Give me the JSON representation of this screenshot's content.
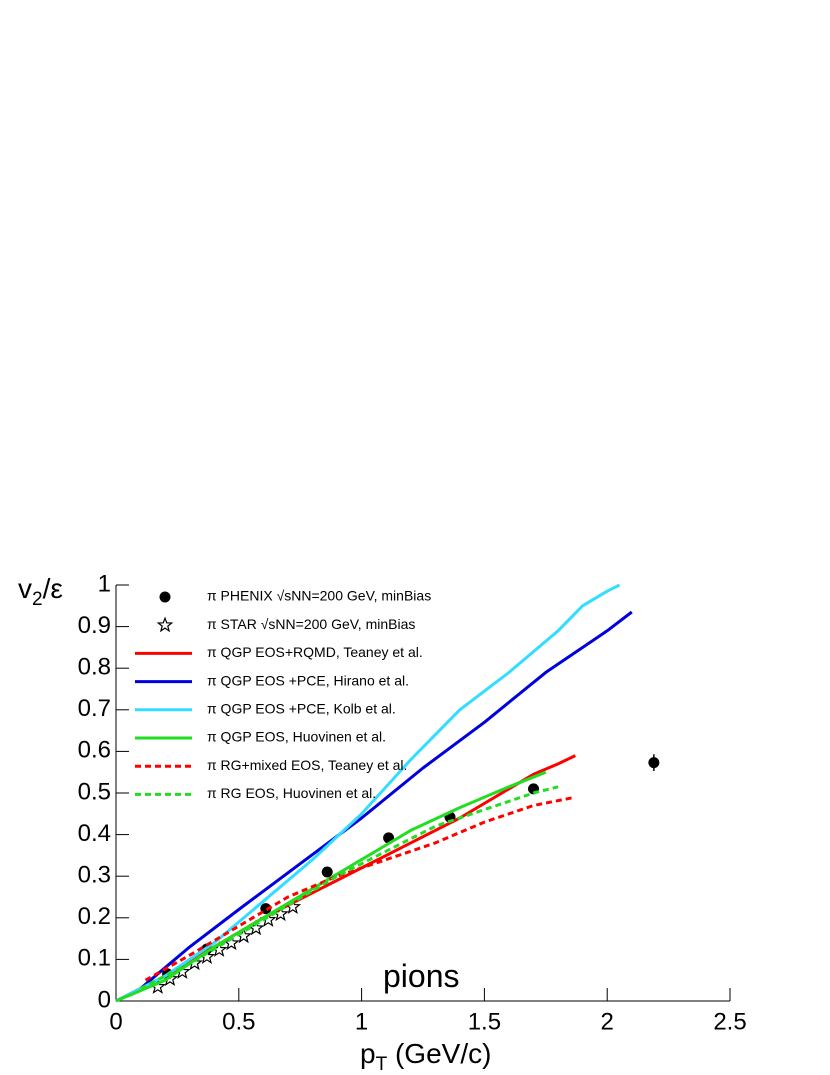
{
  "chart_data": {
    "type": "line",
    "xlabel": [
      "p",
      "T",
      " (GeV/c)"
    ],
    "ylabel": [
      "v",
      "2",
      "/ε"
    ],
    "annotation": "pions",
    "xlim": [
      0,
      2.5
    ],
    "ylim": [
      0,
      1
    ],
    "xticks": [
      0,
      0.5,
      1,
      1.5,
      2,
      2.5
    ],
    "yticks": [
      0,
      0.1,
      0.2,
      0.3,
      0.4,
      0.5,
      0.6,
      0.7,
      0.8,
      0.9,
      1
    ],
    "series": [
      {
        "name": "π PHENIX √sNN=200 GeV, minBias",
        "style": "points",
        "color": "#000000",
        "x": [
          0.21,
          0.37,
          0.61,
          0.86,
          1.11,
          1.36,
          1.7,
          2.19
        ],
        "values": [
          0.065,
          0.125,
          0.222,
          0.31,
          0.392,
          0.442,
          0.51,
          0.573
        ],
        "errors": [
          0.005,
          0.005,
          0.005,
          0.005,
          0.006,
          0.007,
          0.008,
          0.02
        ]
      },
      {
        "name": "π STAR √sNN=200 GeV, minBias",
        "style": "stars",
        "color": "#000000",
        "x": [
          0.17,
          0.22,
          0.27,
          0.32,
          0.37,
          0.42,
          0.47,
          0.52,
          0.57,
          0.62,
          0.67,
          0.72
        ],
        "values": [
          0.034,
          0.053,
          0.07,
          0.091,
          0.106,
          0.123,
          0.139,
          0.156,
          0.175,
          0.195,
          0.209,
          0.226
        ]
      },
      {
        "name": "π  QGP EOS+RQMD, Teaney et al.",
        "style": "solid",
        "color": "#ff0000",
        "x": [
          0.2,
          0.4,
          0.6,
          0.8,
          1.0,
          1.2,
          1.4,
          1.6,
          1.7,
          1.8,
          1.87
        ],
        "values": [
          0.06,
          0.13,
          0.2,
          0.26,
          0.32,
          0.38,
          0.44,
          0.51,
          0.545,
          0.57,
          0.59
        ]
      },
      {
        "name": "π QGP EOS +PCE, Hirano et al.",
        "style": "solid",
        "color": "#0000dd",
        "x": [
          0,
          0.1,
          0.2,
          0.3,
          0.5,
          0.75,
          1.0,
          1.25,
          1.5,
          1.75,
          2.0,
          2.1
        ],
        "values": [
          0,
          0.03,
          0.08,
          0.13,
          0.22,
          0.33,
          0.44,
          0.56,
          0.67,
          0.79,
          0.89,
          0.935
        ]
      },
      {
        "name": "π QGP EOS +PCE, Kolb et al.",
        "style": "solid",
        "color": "#33ddff",
        "x": [
          0,
          0.2,
          0.4,
          0.6,
          0.8,
          1.0,
          1.2,
          1.4,
          1.6,
          1.8,
          1.9,
          2.0,
          2.05
        ],
        "values": [
          0,
          0.06,
          0.14,
          0.24,
          0.34,
          0.45,
          0.58,
          0.7,
          0.79,
          0.89,
          0.95,
          0.985,
          1.0
        ]
      },
      {
        "name": "π QGP EOS, Huovinen et al.",
        "style": "solid",
        "color": "#22dd22",
        "x": [
          0,
          0.2,
          0.4,
          0.6,
          0.8,
          1.0,
          1.2,
          1.4,
          1.6,
          1.75
        ],
        "values": [
          0,
          0.05,
          0.13,
          0.2,
          0.27,
          0.34,
          0.41,
          0.465,
          0.515,
          0.55
        ]
      },
      {
        "name": "π RG+mixed EOS, Teaney et al.",
        "style": "dashed",
        "color": "#ff0000",
        "x": [
          0.12,
          0.3,
          0.5,
          0.7,
          0.9,
          1.1,
          1.3,
          1.5,
          1.7,
          1.87
        ],
        "values": [
          0.05,
          0.11,
          0.18,
          0.25,
          0.3,
          0.34,
          0.38,
          0.43,
          0.47,
          0.49
        ]
      },
      {
        "name": "π RG EOS, Huovinen et al.",
        "style": "dashed",
        "color": "#22dd22",
        "x": [
          0.1,
          0.3,
          0.5,
          0.7,
          0.9,
          1.1,
          1.3,
          1.5,
          1.7,
          1.8
        ],
        "values": [
          0.03,
          0.09,
          0.16,
          0.23,
          0.3,
          0.36,
          0.42,
          0.46,
          0.5,
          0.515
        ]
      }
    ]
  }
}
